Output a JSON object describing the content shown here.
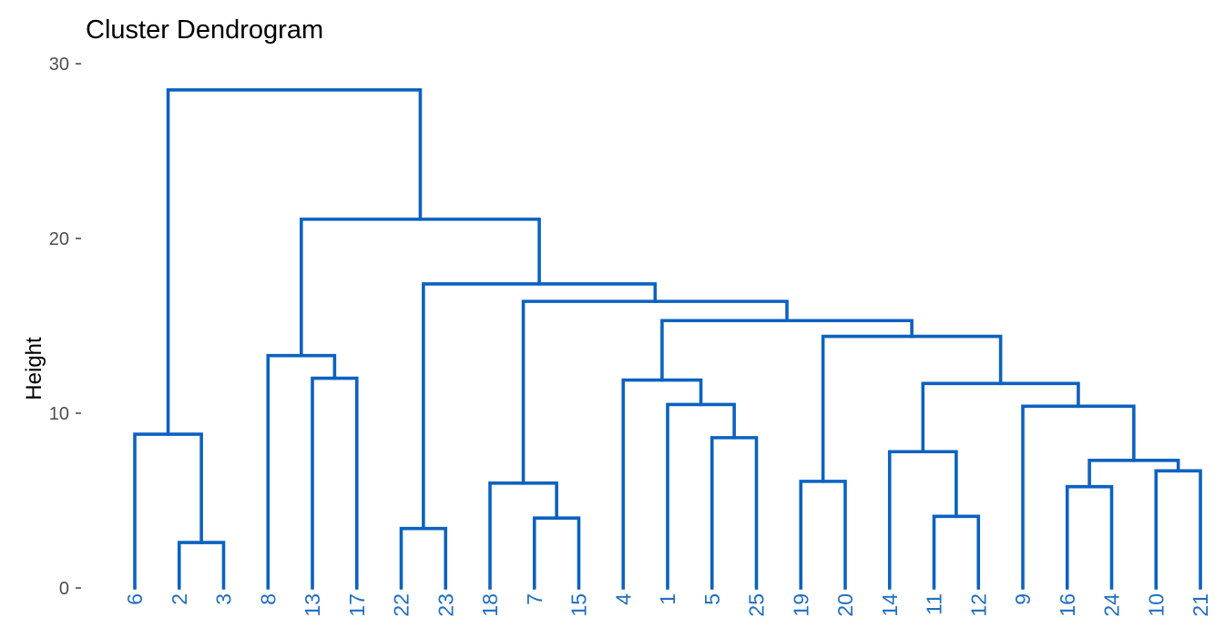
{
  "chart_data": {
    "type": "dendrogram",
    "title": "Cluster Dendrogram",
    "ylabel": "Height",
    "xlabel": "",
    "ylim": [
      0,
      30
    ],
    "yticks": [
      0,
      10,
      20,
      30
    ],
    "grid": false,
    "line_color": "#0b62c0",
    "label_color": "#1f6fc0",
    "leaves": [
      "6",
      "2",
      "3",
      "8",
      "13",
      "17",
      "22",
      "23",
      "18",
      "7",
      "15",
      "4",
      "1",
      "5",
      "25",
      "19",
      "20",
      "14",
      "11",
      "12",
      "9",
      "16",
      "24",
      "10",
      "21"
    ],
    "merges": [
      {
        "a": "2",
        "b": "3",
        "height": 2.6
      },
      {
        "a": "6",
        "b": "m1",
        "height": 8.8
      },
      {
        "a": "13",
        "b": "17",
        "height": 12.0
      },
      {
        "a": "8",
        "b": "m3",
        "height": 13.3
      },
      {
        "a": "22",
        "b": "23",
        "height": 3.4
      },
      {
        "a": "7",
        "b": "15",
        "height": 4.0
      },
      {
        "a": "18",
        "b": "m6",
        "height": 6.0
      },
      {
        "a": "5",
        "b": "25",
        "height": 8.6
      },
      {
        "a": "1",
        "b": "m8",
        "height": 10.5
      },
      {
        "a": "4",
        "b": "m9",
        "height": 11.9
      },
      {
        "a": "19",
        "b": "20",
        "height": 6.1
      },
      {
        "a": "11",
        "b": "12",
        "height": 4.1
      },
      {
        "a": "14",
        "b": "m12",
        "height": 7.8
      },
      {
        "a": "16",
        "b": "24",
        "height": 5.8
      },
      {
        "a": "10",
        "b": "21",
        "height": 6.7
      },
      {
        "a": "m14",
        "b": "m15",
        "height": 7.3
      },
      {
        "a": "9",
        "b": "m16",
        "height": 10.4
      },
      {
        "a": "m13",
        "b": "m17",
        "height": 11.7
      },
      {
        "a": "m11",
        "b": "m18",
        "height": 14.4
      },
      {
        "a": "m10",
        "b": "m19",
        "height": 15.3
      },
      {
        "a": "m7",
        "b": "m20",
        "height": 16.4
      },
      {
        "a": "m5",
        "b": "m21",
        "height": 17.4
      },
      {
        "a": "m4",
        "b": "m22",
        "height": 21.1
      },
      {
        "a": "m2",
        "b": "m23",
        "height": 28.5
      }
    ]
  }
}
